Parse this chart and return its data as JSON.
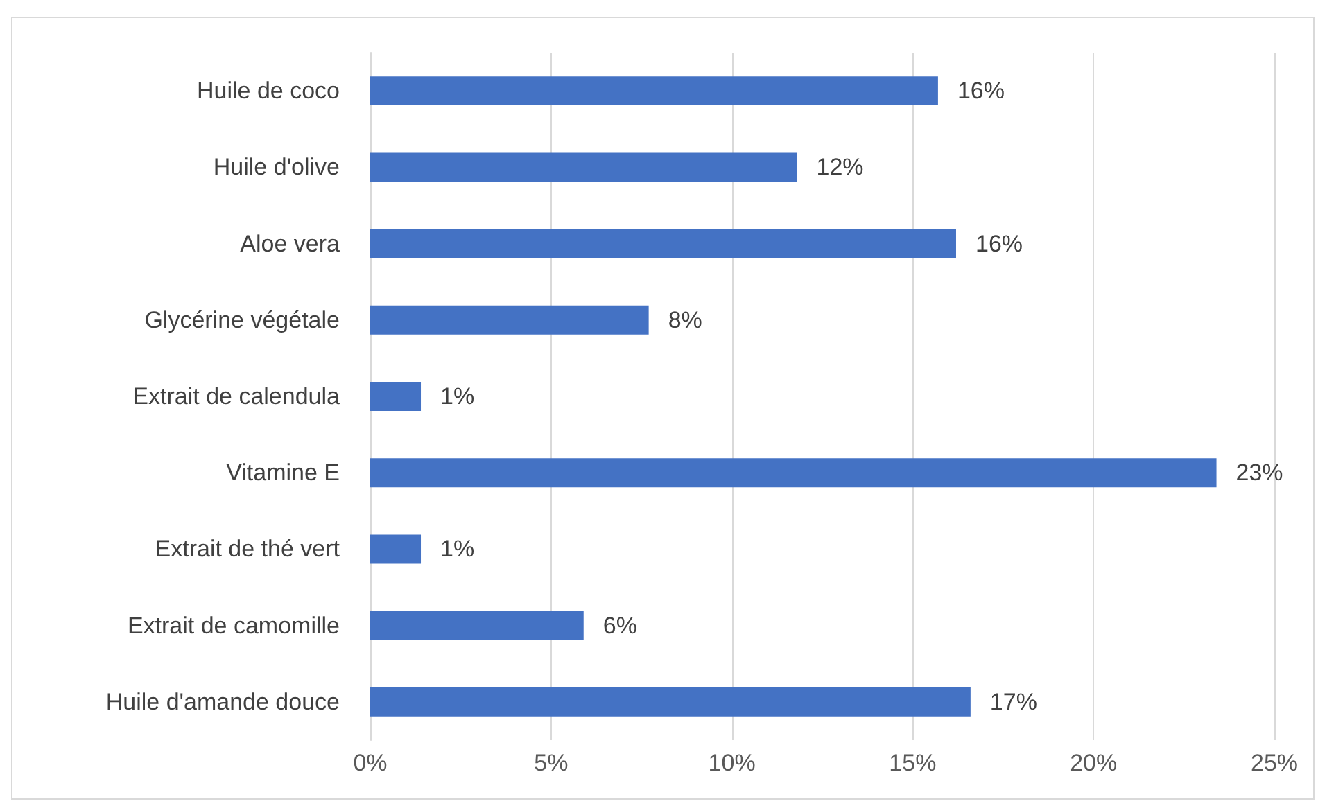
{
  "chart_data": {
    "type": "bar",
    "orientation": "horizontal",
    "categories": [
      "Huile de coco",
      "Huile d'olive",
      "Aloe vera",
      "Glycérine végétale",
      "Extrait de calendula",
      "Vitamine E",
      "Extrait de thé vert",
      "Extrait de camomille",
      "Huile d'amande douce"
    ],
    "values": [
      15.7,
      11.8,
      16.2,
      7.7,
      1.4,
      23.4,
      1.4,
      5.9,
      16.6
    ],
    "value_labels": [
      "16%",
      "12%",
      "16%",
      "8%",
      "1%",
      "23%",
      "1%",
      "6%",
      "17%"
    ],
    "color": "#4472c4",
    "xlim": [
      0,
      25
    ],
    "xticks": [
      {
        "value": 0,
        "label": "0%"
      },
      {
        "value": 5,
        "label": "5%"
      },
      {
        "value": 10,
        "label": "10%"
      },
      {
        "value": 15,
        "label": "15%"
      },
      {
        "value": 20,
        "label": "20%"
      },
      {
        "value": 25,
        "label": "25%"
      }
    ],
    "grid": "x"
  }
}
